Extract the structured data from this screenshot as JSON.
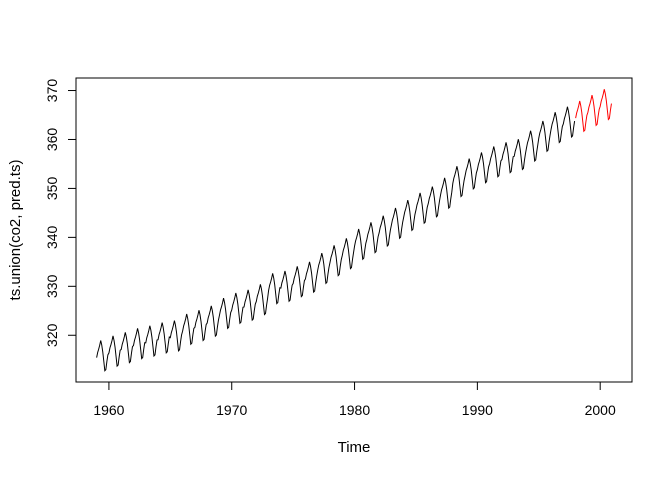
{
  "figure": {
    "xlabel": "Time",
    "ylabel": "ts.union(co2, pred.ts)"
  },
  "chart_data": {
    "type": "line",
    "title": "",
    "xlabel": "Time",
    "ylabel": "ts.union(co2, pred.ts)",
    "x_ticks": [
      1960,
      1970,
      1980,
      1990,
      2000
    ],
    "y_ticks": [
      320,
      330,
      340,
      350,
      360,
      370
    ],
    "xlim": [
      1957.32,
      2002.59
    ],
    "ylim": [
      310.45,
      372.56
    ],
    "grid": false,
    "legend": "none",
    "background": "#ffffff",
    "axis_color": "#000000",
    "frequency": 12,
    "seasonal_pattern": [
      -0.54,
      0.51,
      1.19,
      2.0,
      2.96,
      2.03,
      0.63,
      -1.28,
      -3.22,
      -3.0,
      -1.35,
      0.03
    ],
    "series": [
      {
        "name": "co2",
        "color": "#000000",
        "start_year": 1959,
        "end_year": 1997,
        "annual_means": [
          315.97,
          316.91,
          317.64,
          318.45,
          318.99,
          319.62,
          320.04,
          321.38,
          322.16,
          323.04,
          324.62,
          325.68,
          326.32,
          327.45,
          329.68,
          330.18,
          331.11,
          332.04,
          333.83,
          335.4,
          336.84,
          338.75,
          340.11,
          341.45,
          343.05,
          344.65,
          346.12,
          347.42,
          349.19,
          351.57,
          353.12,
          354.39,
          355.61,
          356.45,
          357.1,
          358.83,
          360.82,
          362.61,
          363.73
        ]
      },
      {
        "name": "pred.ts",
        "color": "#ff0000",
        "start_year": 1998,
        "end_year": 2000,
        "annual_means": [
          364.9,
          366.1,
          367.3
        ]
      }
    ]
  }
}
